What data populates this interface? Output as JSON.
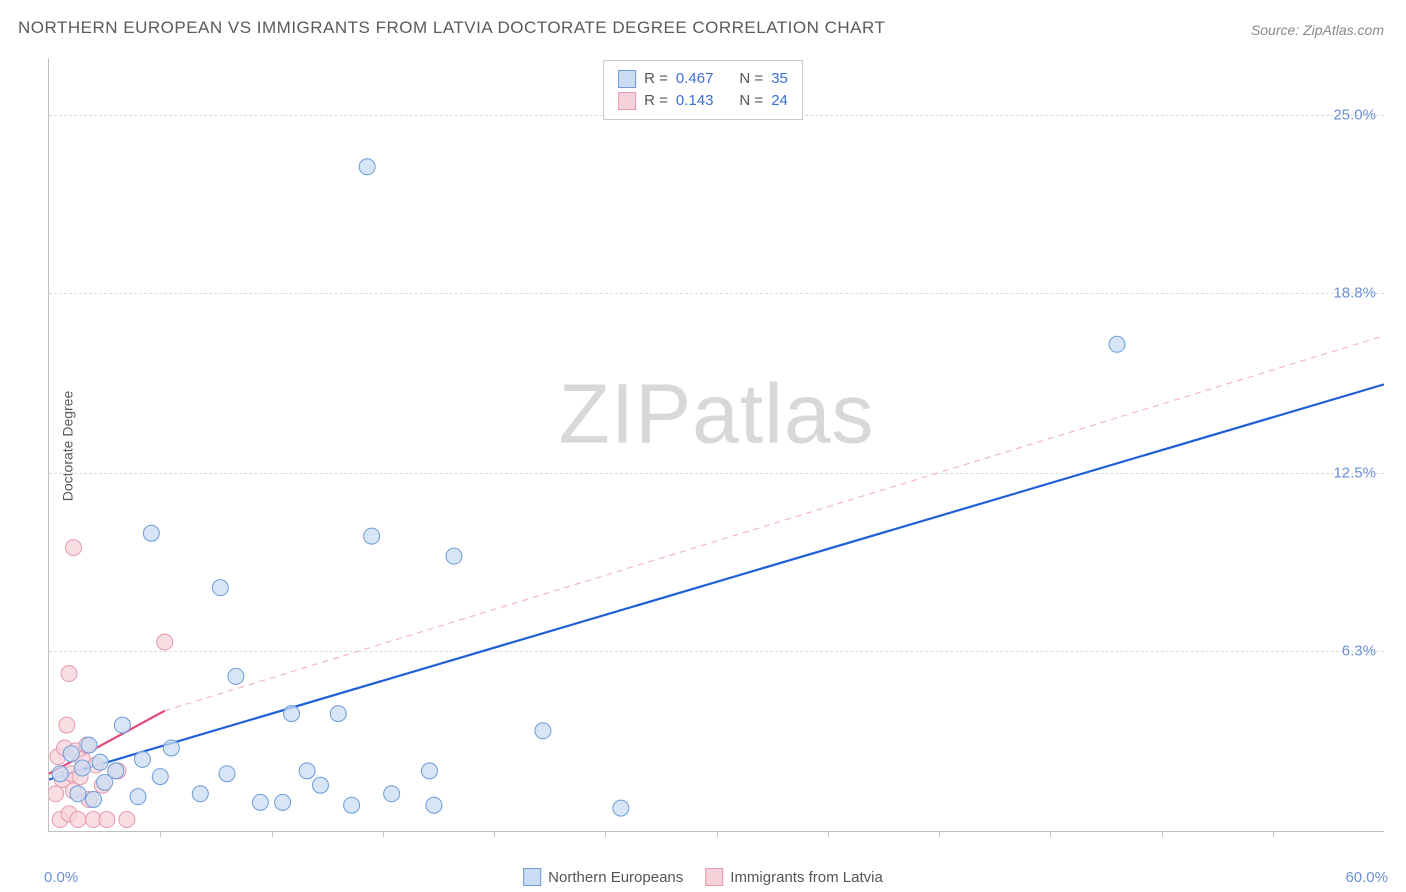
{
  "title": "NORTHERN EUROPEAN VS IMMIGRANTS FROM LATVIA DOCTORATE DEGREE CORRELATION CHART",
  "source": "Source: ZipAtlas.com",
  "ylabel": "Doctorate Degree",
  "watermark_zip": "ZIP",
  "watermark_atlas": "atlas",
  "chart": {
    "type": "scatter",
    "background_color": "#ffffff",
    "grid_color": "#dcdcdc",
    "axis_color": "#c0c0c0",
    "label_color": "#6a8fd8",
    "text_color": "#5a5a5a",
    "xlim": [
      0,
      60
    ],
    "ylim": [
      0,
      27
    ],
    "xticks": [
      5,
      10,
      15,
      20,
      25,
      30,
      35,
      40,
      45,
      50,
      55
    ],
    "yticks": [
      6.3,
      12.5,
      18.8,
      25.0
    ],
    "ytick_labels": [
      "6.3%",
      "12.5%",
      "18.8%",
      "25.0%"
    ],
    "xmin_label": "0.0%",
    "xmax_label": "60.0%",
    "marker_radius": 8,
    "marker_stroke_width": 1
  },
  "series": [
    {
      "name": "Northern Europeans",
      "fill": "#c9dcf3",
      "stroke": "#6d9bd8",
      "r_label": "R =",
      "r_value": "0.467",
      "n_label": "N =",
      "n_value": "35",
      "trend": {
        "x1": 0,
        "y1": 1.8,
        "x2": 60,
        "y2": 15.6,
        "color": "#1f5fd8",
        "width": 2.2,
        "dash": "none"
      },
      "points": [
        [
          0.5,
          2.0
        ],
        [
          1.0,
          2.7
        ],
        [
          1.3,
          1.3
        ],
        [
          1.5,
          2.2
        ],
        [
          1.8,
          3.0
        ],
        [
          2.0,
          1.1
        ],
        [
          2.3,
          2.4
        ],
        [
          2.5,
          1.7
        ],
        [
          3.0,
          2.1
        ],
        [
          3.3,
          3.7
        ],
        [
          4.0,
          1.2
        ],
        [
          4.2,
          2.5
        ],
        [
          4.6,
          10.4
        ],
        [
          5.0,
          1.9
        ],
        [
          5.5,
          2.9
        ],
        [
          6.8,
          1.3
        ],
        [
          7.7,
          8.5
        ],
        [
          8.0,
          2.0
        ],
        [
          8.4,
          5.4
        ],
        [
          9.5,
          1.0
        ],
        [
          10.5,
          1.0
        ],
        [
          10.9,
          4.1
        ],
        [
          11.6,
          2.1
        ],
        [
          12.2,
          1.6
        ],
        [
          13.0,
          4.1
        ],
        [
          13.6,
          0.9
        ],
        [
          14.3,
          23.2
        ],
        [
          14.5,
          10.3
        ],
        [
          15.4,
          1.3
        ],
        [
          17.1,
          2.1
        ],
        [
          17.3,
          0.9
        ],
        [
          18.2,
          9.6
        ],
        [
          22.2,
          3.5
        ],
        [
          25.7,
          0.8
        ],
        [
          48.0,
          17.0
        ]
      ]
    },
    {
      "name": "Immigrants from Latvia",
      "fill": "#f6d1da",
      "stroke": "#e59aaf",
      "r_label": "R =",
      "r_value": "0.143",
      "n_label": "N =",
      "n_value": "24",
      "trend_solid": {
        "x1": 0,
        "y1": 2.0,
        "x2": 5.2,
        "y2": 4.2,
        "color": "#e64a7a",
        "width": 2.2
      },
      "trend_dash": {
        "x1": 5.2,
        "y1": 4.2,
        "x2": 60,
        "y2": 17.3,
        "color": "#f3b6c6",
        "width": 1.2,
        "dash": "6,5"
      },
      "points": [
        [
          0.3,
          1.3
        ],
        [
          0.4,
          2.6
        ],
        [
          0.5,
          0.4
        ],
        [
          0.6,
          1.8
        ],
        [
          0.7,
          2.9
        ],
        [
          0.8,
          3.7
        ],
        [
          0.9,
          0.6
        ],
        [
          0.9,
          5.5
        ],
        [
          1.0,
          2.0
        ],
        [
          1.1,
          9.9
        ],
        [
          1.1,
          1.4
        ],
        [
          1.2,
          2.8
        ],
        [
          1.3,
          0.4
        ],
        [
          1.4,
          1.9
        ],
        [
          1.5,
          2.5
        ],
        [
          1.7,
          3.0
        ],
        [
          1.8,
          1.1
        ],
        [
          2.0,
          0.4
        ],
        [
          2.1,
          2.3
        ],
        [
          2.4,
          1.6
        ],
        [
          2.6,
          0.4
        ],
        [
          3.1,
          2.1
        ],
        [
          3.5,
          0.4
        ],
        [
          5.2,
          6.6
        ]
      ]
    }
  ],
  "legend_bottom": [
    {
      "label": "Northern Europeans",
      "fill": "#c9dcf3",
      "stroke": "#6d9bd8"
    },
    {
      "label": "Immigrants from Latvia",
      "fill": "#f6d1da",
      "stroke": "#e59aaf"
    }
  ]
}
